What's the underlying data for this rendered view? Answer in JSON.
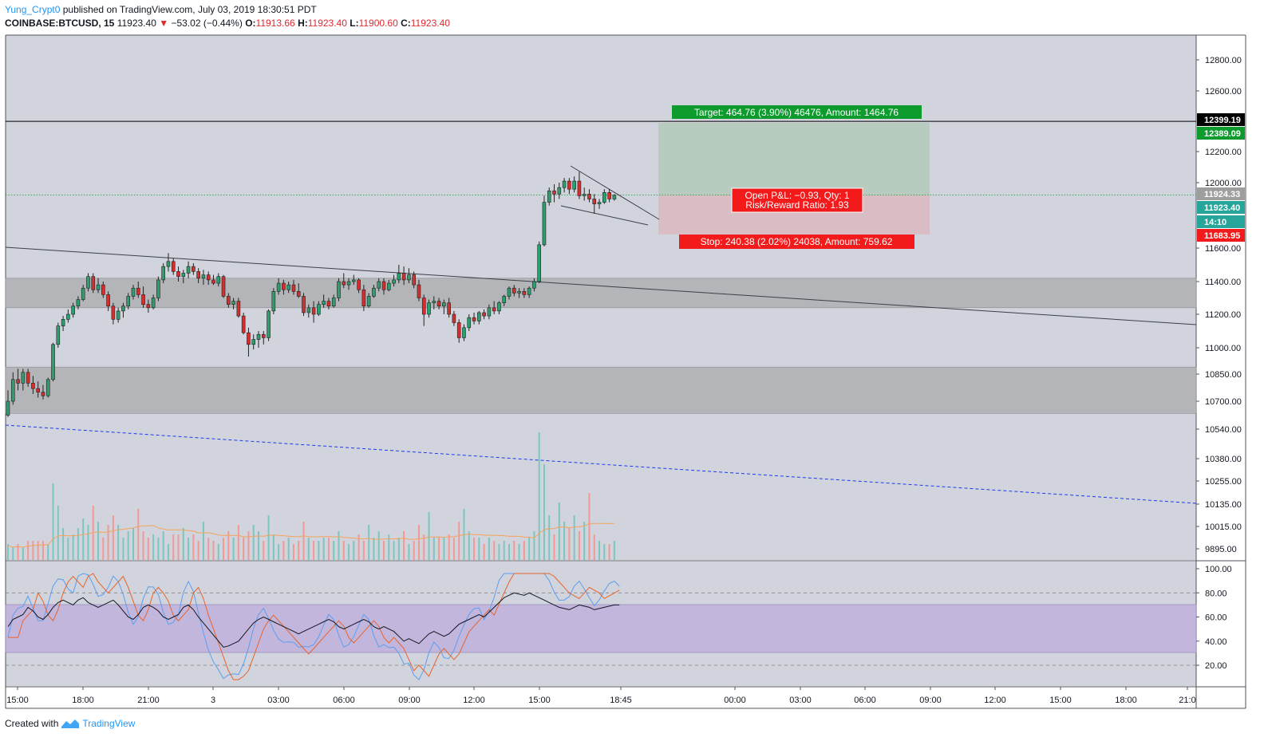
{
  "header": {
    "user": "Yung_Crypt0",
    "published": "published on TradingView.com, July 03, 2019 18:30:51 PDT",
    "symbol": "COINBASE:BTCUSD, 15",
    "last": "11923.40",
    "change": "−53.02 (−0.44%)",
    "o_label": "O:",
    "o_value": "11913.66",
    "h_label": "H:",
    "h_value": "11923.40",
    "l_label": "L:",
    "l_value": "11900.60",
    "c_label": "C:",
    "c_value": "11923.40"
  },
  "footer": {
    "created": "Created with",
    "brand": "TradingView"
  },
  "colors": {
    "background": "#d1d4dc",
    "bull": "#26a69a",
    "bear": "#ef5350",
    "zone": "#b4b5b9",
    "target_fill": "#b7cbbf",
    "stop_fill": "#d9bcc4",
    "rsi_band": "#c3b6dd",
    "target_label": "#0c9b2c",
    "stop_label": "#f21a1a",
    "dashed_trend": "#1c3af0"
  },
  "chart_data": {
    "type": "candlestick",
    "interval": "15",
    "price_ticks": [
      "12800.00",
      "12600.00",
      "12200.00",
      "12000.00",
      "11600.00",
      "11400.00",
      "11200.00",
      "11000.00",
      "10850.00",
      "10700.00",
      "10540.00",
      "10380.00",
      "10255.00",
      "10135.00",
      "10015.00",
      "9895.00"
    ],
    "price_labels": [
      {
        "text": "12399.19",
        "bg": "#000000",
        "price": 12399.19
      },
      {
        "text": "12389.09",
        "bg": "#0c9b2c",
        "price": 12389.09
      },
      {
        "text": "11924.33",
        "bg": "#9e9e9e",
        "price": 11924.33
      },
      {
        "text": "11923.40",
        "bg": "#26a69a",
        "price": 11923.4
      },
      {
        "text": "14:10",
        "bg": "#26a69a",
        "price": 11880
      },
      {
        "text": "11683.95",
        "bg": "#f21a1a",
        "price": 11683.95
      }
    ],
    "time_ticks": [
      "15:00",
      "18:00",
      "21:00",
      "3",
      "03:00",
      "06:00",
      "09:00",
      "12:00",
      "15:00",
      "18:45",
      "00:00",
      "03:00",
      "06:00",
      "09:00",
      "12:00",
      "15:00",
      "18:00",
      "21:0"
    ],
    "rsi_ticks": [
      "100.00",
      "80.00",
      "60.00",
      "40.00",
      "20.00"
    ],
    "candles": [
      [
        10620,
        10760,
        10610,
        10700
      ],
      [
        10700,
        10860,
        10680,
        10820
      ],
      [
        10820,
        10880,
        10760,
        10800
      ],
      [
        10800,
        10880,
        10760,
        10860
      ],
      [
        10860,
        10880,
        10780,
        10800
      ],
      [
        10800,
        10840,
        10740,
        10770
      ],
      [
        10770,
        10810,
        10720,
        10750
      ],
      [
        10750,
        10790,
        10710,
        10730
      ],
      [
        10730,
        10830,
        10720,
        10820
      ],
      [
        10820,
        11030,
        10810,
        11020
      ],
      [
        11020,
        11150,
        11000,
        11130
      ],
      [
        11130,
        11190,
        11100,
        11170
      ],
      [
        11170,
        11230,
        11150,
        11200
      ],
      [
        11200,
        11270,
        11180,
        11250
      ],
      [
        11250,
        11310,
        11230,
        11290
      ],
      [
        11290,
        11380,
        11280,
        11360
      ],
      [
        11360,
        11450,
        11340,
        11430
      ],
      [
        11430,
        11450,
        11330,
        11350
      ],
      [
        11350,
        11420,
        11330,
        11380
      ],
      [
        11380,
        11400,
        11300,
        11320
      ],
      [
        11320,
        11340,
        11220,
        11250
      ],
      [
        11250,
        11270,
        11140,
        11170
      ],
      [
        11170,
        11240,
        11150,
        11220
      ],
      [
        11220,
        11270,
        11180,
        11250
      ],
      [
        11250,
        11330,
        11230,
        11310
      ],
      [
        11310,
        11380,
        11290,
        11360
      ],
      [
        11360,
        11400,
        11300,
        11320
      ],
      [
        11320,
        11370,
        11240,
        11260
      ],
      [
        11260,
        11290,
        11210,
        11240
      ],
      [
        11240,
        11320,
        11230,
        11300
      ],
      [
        11300,
        11430,
        11280,
        11410
      ],
      [
        11410,
        11510,
        11390,
        11490
      ],
      [
        11490,
        11570,
        11460,
        11520
      ],
      [
        11520,
        11540,
        11440,
        11460
      ],
      [
        11460,
        11490,
        11400,
        11430
      ],
      [
        11430,
        11470,
        11390,
        11450
      ],
      [
        11450,
        11520,
        11420,
        11490
      ],
      [
        11490,
        11510,
        11440,
        11460
      ],
      [
        11460,
        11480,
        11390,
        11420
      ],
      [
        11420,
        11470,
        11380,
        11440
      ],
      [
        11440,
        11460,
        11380,
        11410
      ],
      [
        11410,
        11440,
        11380,
        11390
      ],
      [
        11390,
        11450,
        11370,
        11430
      ],
      [
        11430,
        11440,
        11300,
        11310
      ],
      [
        11310,
        11330,
        11240,
        11260
      ],
      [
        11260,
        11300,
        11230,
        11280
      ],
      [
        11280,
        11300,
        11180,
        11190
      ],
      [
        11190,
        11210,
        11080,
        11090
      ],
      [
        11090,
        11120,
        10950,
        11020
      ],
      [
        11020,
        11080,
        10990,
        11050
      ],
      [
        11050,
        11100,
        11000,
        11080
      ],
      [
        11080,
        11100,
        11020,
        11060
      ],
      [
        11060,
        11230,
        11040,
        11220
      ],
      [
        11220,
        11360,
        11200,
        11340
      ],
      [
        11340,
        11420,
        11320,
        11390
      ],
      [
        11390,
        11410,
        11320,
        11350
      ],
      [
        11350,
        11400,
        11330,
        11380
      ],
      [
        11380,
        11410,
        11320,
        11340
      ],
      [
        11340,
        11390,
        11300,
        11310
      ],
      [
        11310,
        11330,
        11190,
        11210
      ],
      [
        11210,
        11260,
        11180,
        11240
      ],
      [
        11240,
        11280,
        11150,
        11200
      ],
      [
        11200,
        11280,
        11190,
        11260
      ],
      [
        11260,
        11320,
        11240,
        11280
      ],
      [
        11280,
        11300,
        11230,
        11250
      ],
      [
        11250,
        11320,
        11240,
        11300
      ],
      [
        11300,
        11420,
        11280,
        11400
      ],
      [
        11400,
        11450,
        11360,
        11380
      ],
      [
        11380,
        11420,
        11350,
        11400
      ],
      [
        11400,
        11440,
        11380,
        11410
      ],
      [
        11410,
        11420,
        11330,
        11350
      ],
      [
        11350,
        11380,
        11220,
        11250
      ],
      [
        11250,
        11330,
        11240,
        11310
      ],
      [
        11310,
        11380,
        11300,
        11360
      ],
      [
        11360,
        11420,
        11340,
        11400
      ],
      [
        11400,
        11420,
        11320,
        11350
      ],
      [
        11350,
        11410,
        11340,
        11390
      ],
      [
        11390,
        11440,
        11370,
        11410
      ],
      [
        11410,
        11500,
        11390,
        11450
      ],
      [
        11450,
        11490,
        11380,
        11410
      ],
      [
        11410,
        11480,
        11390,
        11440
      ],
      [
        11440,
        11460,
        11360,
        11380
      ],
      [
        11380,
        11410,
        11280,
        11300
      ],
      [
        11300,
        11320,
        11130,
        11200
      ],
      [
        11200,
        11290,
        11180,
        11270
      ],
      [
        11270,
        11310,
        11230,
        11280
      ],
      [
        11280,
        11300,
        11230,
        11250
      ],
      [
        11250,
        11290,
        11200,
        11270
      ],
      [
        11270,
        11300,
        11180,
        11200
      ],
      [
        11200,
        11220,
        11130,
        11150
      ],
      [
        11150,
        11170,
        11030,
        11060
      ],
      [
        11060,
        11140,
        11040,
        11120
      ],
      [
        11120,
        11200,
        11100,
        11180
      ],
      [
        11180,
        11210,
        11140,
        11160
      ],
      [
        11160,
        11220,
        11140,
        11210
      ],
      [
        11210,
        11230,
        11170,
        11190
      ],
      [
        11190,
        11260,
        11170,
        11240
      ],
      [
        11240,
        11280,
        11200,
        11220
      ],
      [
        11220,
        11280,
        11200,
        11270
      ],
      [
        11270,
        11320,
        11250,
        11310
      ],
      [
        11310,
        11370,
        11290,
        11360
      ],
      [
        11360,
        11380,
        11310,
        11330
      ],
      [
        11330,
        11360,
        11300,
        11340
      ],
      [
        11340,
        11360,
        11300,
        11320
      ],
      [
        11320,
        11370,
        11300,
        11360
      ],
      [
        11360,
        11420,
        11340,
        11400
      ],
      [
        11400,
        11640,
        11390,
        11620
      ],
      [
        11620,
        11920,
        11610,
        11880
      ],
      [
        11880,
        11970,
        11860,
        11950
      ],
      [
        11950,
        11990,
        11880,
        11930
      ],
      [
        11930,
        12000,
        11900,
        11970
      ],
      [
        11970,
        12030,
        11940,
        12010
      ],
      [
        12010,
        12030,
        11930,
        11960
      ],
      [
        11960,
        12040,
        11940,
        12010
      ],
      [
        12010,
        12070,
        11900,
        11920
      ],
      [
        11920,
        11970,
        11890,
        11930
      ],
      [
        11930,
        11960,
        11880,
        11900
      ],
      [
        11900,
        11930,
        11810,
        11870
      ],
      [
        11870,
        11900,
        11840,
        11880
      ],
      [
        11880,
        11960,
        11870,
        11940
      ],
      [
        11940,
        11960,
        11880,
        11900
      ],
      [
        11900,
        11930,
        11890,
        11923
      ]
    ],
    "volumes": [
      0.25,
      0.2,
      0.25,
      0.2,
      0.3,
      0.3,
      0.3,
      0.3,
      0.25,
      1.2,
      0.85,
      0.5,
      0.35,
      0.4,
      0.5,
      0.65,
      0.55,
      0.85,
      0.6,
      0.35,
      0.55,
      0.7,
      0.55,
      0.35,
      0.45,
      0.5,
      0.8,
      0.45,
      0.35,
      0.4,
      0.35,
      0.45,
      0.25,
      0.4,
      0.4,
      0.5,
      0.35,
      0.4,
      0.3,
      0.6,
      0.35,
      0.3,
      0.25,
      0.35,
      0.45,
      0.35,
      0.55,
      0.35,
      0.45,
      0.55,
      0.45,
      0.3,
      0.7,
      0.4,
      0.25,
      0.3,
      0.35,
      0.25,
      0.3,
      0.6,
      0.35,
      0.3,
      0.3,
      0.35,
      0.35,
      0.3,
      0.45,
      0.3,
      0.25,
      0.3,
      0.4,
      0.3,
      0.55,
      0.35,
      0.45,
      0.3,
      0.4,
      0.3,
      0.35,
      0.45,
      0.25,
      0.3,
      0.55,
      0.4,
      0.75,
      0.35,
      0.35,
      0.35,
      0.4,
      0.35,
      0.6,
      0.8,
      0.45,
      0.35,
      0.35,
      0.25,
      0.35,
      0.3,
      0.25,
      0.3,
      0.25,
      0.3,
      0.25,
      0.3,
      0.35,
      0.45,
      2.0,
      1.5,
      0.7,
      0.4,
      0.9,
      0.6,
      0.5,
      0.7,
      0.45,
      0.6,
      1.05,
      0.4,
      0.3,
      0.25,
      0.25,
      0.3,
      0.3
    ],
    "rsi": [
      52,
      58,
      60,
      62,
      68,
      65,
      60,
      58,
      62,
      68,
      72,
      74,
      72,
      70,
      74,
      76,
      72,
      70,
      68,
      70,
      72,
      74,
      70,
      65,
      60,
      58,
      62,
      68,
      70,
      68,
      65,
      60,
      58,
      60,
      62,
      68,
      70,
      66,
      60,
      55,
      50,
      45,
      40,
      35,
      36,
      38,
      40,
      45,
      50,
      55,
      58,
      60,
      58,
      56,
      54,
      52,
      50,
      48,
      46,
      48,
      50,
      52,
      54,
      56,
      58,
      56,
      52,
      50,
      52,
      54,
      56,
      58,
      56,
      52,
      50,
      52,
      50,
      48,
      44,
      40,
      42,
      40,
      38,
      42,
      46,
      48,
      46,
      44,
      46,
      50,
      54,
      56,
      58,
      60,
      62,
      60,
      64,
      68,
      72,
      76,
      78,
      80,
      79,
      78,
      80,
      78,
      76,
      74,
      72,
      70,
      68,
      67,
      66,
      68,
      70,
      69,
      68,
      66,
      67,
      68,
      69,
      70,
      70
    ],
    "trendlines": [
      {
        "style": "solid",
        "from": [
          0,
          11600
        ],
        "to": [
          180,
          11140
        ]
      },
      {
        "style": "dashed",
        "from": [
          0,
          10560
        ],
        "to": [
          180,
          10140
        ]
      },
      {
        "style": "solid",
        "from": [
          114,
          11860
        ],
        "to": [
          123,
          11720
        ]
      },
      {
        "style": "solid",
        "from": [
          116,
          12080
        ],
        "to": [
          124,
          11770
        ]
      }
    ],
    "horizontal_lines": [
      {
        "price": 12399.19,
        "color": "#000000"
      },
      {
        "price": 11924.33,
        "color": "#0c9b2c",
        "style": "dotted"
      }
    ],
    "zones": [
      {
        "from": 11240,
        "to": 11420
      },
      {
        "from": 10630,
        "to": 10890
      }
    ],
    "position": {
      "entry": 11924.33,
      "target": 12389.09,
      "stop": 11683.95,
      "x_from": 124,
      "x_to": 140,
      "target_label": "Target: 464.76 (3.90%) 46476, Amount: 1464.76",
      "stop_label": "Stop: 240.38 (2.02%) 24038, Amount: 759.62",
      "pnl_label": "Open P&L: −0.93, Qty: 1",
      "rr_label": "Risk/Reward Ratio: 1.93"
    }
  }
}
